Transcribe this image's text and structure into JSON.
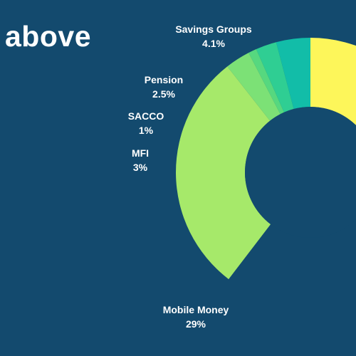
{
  "header": {
    "title": "above"
  },
  "chart_data": {
    "type": "pie",
    "donut": true,
    "title": "above",
    "slices": [
      {
        "label": "Savings Groups",
        "value_text": "4.1%",
        "value": 4.1,
        "color": "#12bda8"
      },
      {
        "label": "Pension",
        "value_text": "2.5%",
        "value": 2.5,
        "color": "#2fce93"
      },
      {
        "label": "SACCO",
        "value_text": "1%",
        "value": 1,
        "color": "#56d87f"
      },
      {
        "label": "MFI",
        "value_text": "3%",
        "value": 3,
        "color": "#7ce176"
      },
      {
        "label": "Mobile Money",
        "value_text": "29%",
        "value": 29,
        "color": "#a6e96a"
      }
    ],
    "partial_slice_color": "#fdf65a",
    "background_color": "#134a6e"
  }
}
